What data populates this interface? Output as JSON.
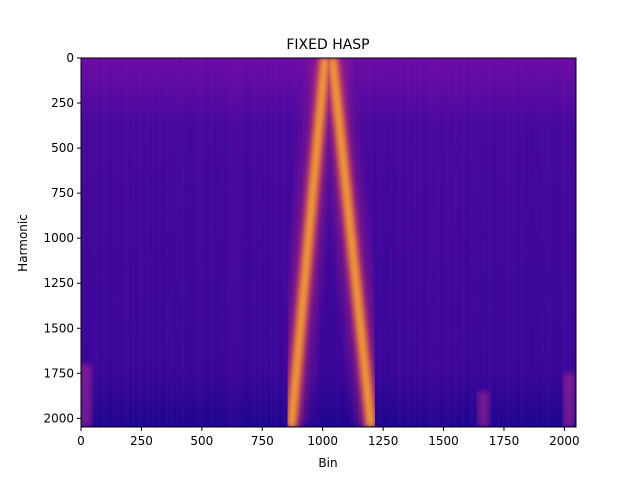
{
  "chart_data": {
    "type": "heatmap",
    "title": "FIXED HASP",
    "xlabel": "Bin",
    "ylabel": "Harmonic",
    "xlim": [
      0,
      2048
    ],
    "ylim": [
      2048,
      0
    ],
    "x_ticks": [
      0,
      250,
      500,
      750,
      1000,
      1250,
      1500,
      1750,
      2000
    ],
    "y_ticks": [
      0,
      250,
      500,
      750,
      1000,
      1250,
      1500,
      1750,
      2000
    ],
    "colormap": "plasma",
    "grid": false,
    "features": [
      {
        "name": "left-ridge",
        "from": {
          "bin": 1010,
          "harmonic": 0
        },
        "to": {
          "bin": 870,
          "harmonic": 2048
        }
      },
      {
        "name": "right-ridge",
        "from": {
          "bin": 1040,
          "harmonic": 0
        },
        "to": {
          "bin": 1200,
          "harmonic": 2048
        }
      },
      {
        "name": "faint-patch",
        "bin_center": 1665,
        "harmonic_range": [
          1850,
          2048
        ]
      },
      {
        "name": "faint-patch",
        "bin_center": 2020,
        "harmonic_range": [
          1750,
          2048
        ]
      },
      {
        "name": "faint-patch",
        "bin_center": 20,
        "harmonic_range": [
          1700,
          2048
        ]
      }
    ]
  }
}
